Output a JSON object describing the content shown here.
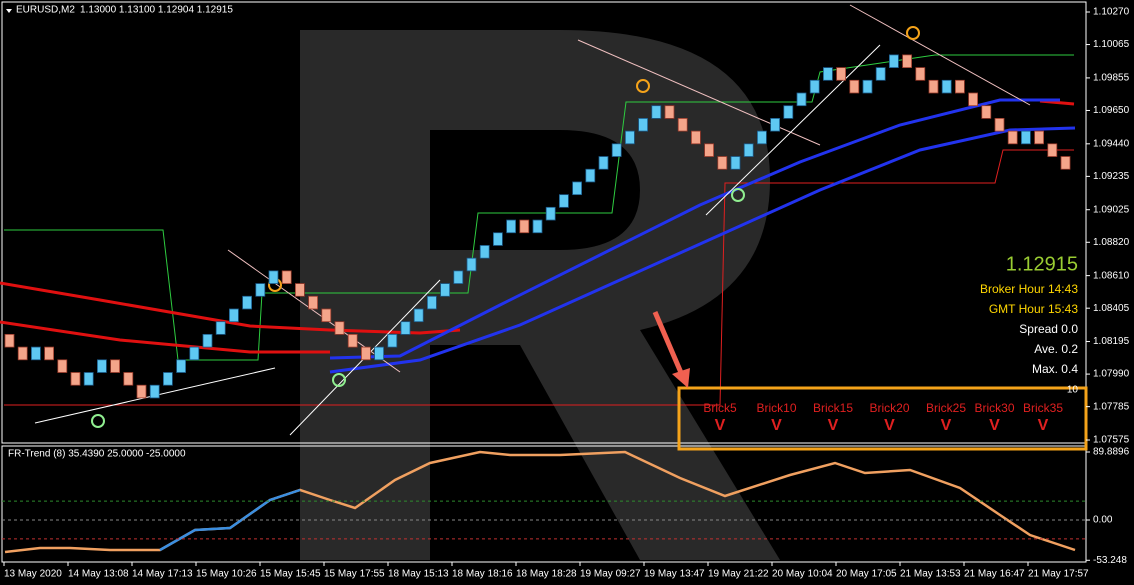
{
  "header": {
    "symbol": "EURUSD,M2",
    "quote": "1.13000 1.13100 1.12904 1.12915"
  },
  "price_axis": {
    "ticks": [
      {
        "value": 1.1027,
        "label": "1.10270"
      },
      1.10065,
      1.09855,
      {
        "value": 1.0965,
        "label": "1.09650"
      },
      {
        "value": 1.0944,
        "label": "1.09440"
      },
      1.09235,
      1.09025,
      {
        "value": 1.0882,
        "label": "1.08820"
      },
      {
        "value": 1.0861,
        "label": "1.08610"
      },
      1.08405,
      1.08195,
      {
        "value": 1.0799,
        "label": "1.07990"
      },
      1.07785,
      1.07575
    ]
  },
  "bricks": {
    "open": 1.0824,
    "closes": [
      1.0816,
      1.0808,
      1.0816,
      1.0808,
      1.08,
      1.0792,
      1.08,
      1.0808,
      1.08,
      1.0792,
      1.0784,
      1.0792,
      1.08,
      1.0808,
      1.0816,
      1.0824,
      1.0832,
      1.084,
      1.0848,
      1.0856,
      1.0864,
      1.0856,
      1.0848,
      1.084,
      1.0832,
      1.0824,
      1.0816,
      1.0808,
      1.0816,
      1.0824,
      1.0832,
      1.084,
      1.0848,
      1.0856,
      1.0864,
      1.0872,
      1.088,
      1.0888,
      1.0896,
      1.0888,
      1.0896,
      1.0904,
      1.0912,
      1.092,
      1.0928,
      1.0936,
      1.0944,
      1.0952,
      1.096,
      1.0968,
      1.096,
      1.0952,
      1.0944,
      1.0936,
      1.0928,
      1.0936,
      1.0944,
      1.0952,
      1.096,
      1.0968,
      1.0976,
      1.0984,
      1.0992,
      1.0984,
      1.0976,
      1.0984,
      1.0992,
      1.1,
      1.0992,
      1.0984,
      1.0976,
      1.0984,
      1.0976,
      1.0968,
      1.096,
      1.0952,
      1.0944,
      1.0952,
      1.0944,
      1.0936,
      1.0928
    ]
  },
  "info": {
    "price": "1.12915",
    "broker_hour": "Broker Hour  14:43",
    "gmt_hour": "GMT Hour  15:43",
    "spread": "Spread 0.0",
    "ave": "Ave. 0.2",
    "max": "Max. 0.4",
    "extra": "10"
  },
  "brick_signals": [
    {
      "label": "Brick5",
      "signal": "V"
    },
    {
      "label": "Brick10",
      "signal": "V"
    },
    {
      "label": "Brick15",
      "signal": "V"
    },
    {
      "label": "Brick20",
      "signal": "V"
    },
    {
      "label": "Brick25",
      "signal": "V"
    },
    {
      "label": "Brick30",
      "signal": "V"
    },
    {
      "label": "Brick35",
      "signal": "V"
    }
  ],
  "indicator": {
    "title": "FR-Trend (8) 35.4390 25.0000 -25.0000",
    "levels": [
      25,
      -25
    ],
    "ticks": [
      89.8896,
      {
        "value": 0,
        "label": "0.00"
      },
      -53.248
    ]
  },
  "time_axis": [
    "13 May 2020",
    "14 May 13:08",
    "14 May 17:13",
    "15 May 10:26",
    "15 May 15:45",
    "15 May 17:55",
    "18 May 15:13",
    "18 May 18:16",
    "18 May 18:28",
    "19 May 09:27",
    "19 May 13:47",
    "19 May 21:22",
    "20 May 10:04",
    "20 May 17:05",
    "21 May 13:53",
    "21 May 16:47",
    "21 May 17:57"
  ]
}
